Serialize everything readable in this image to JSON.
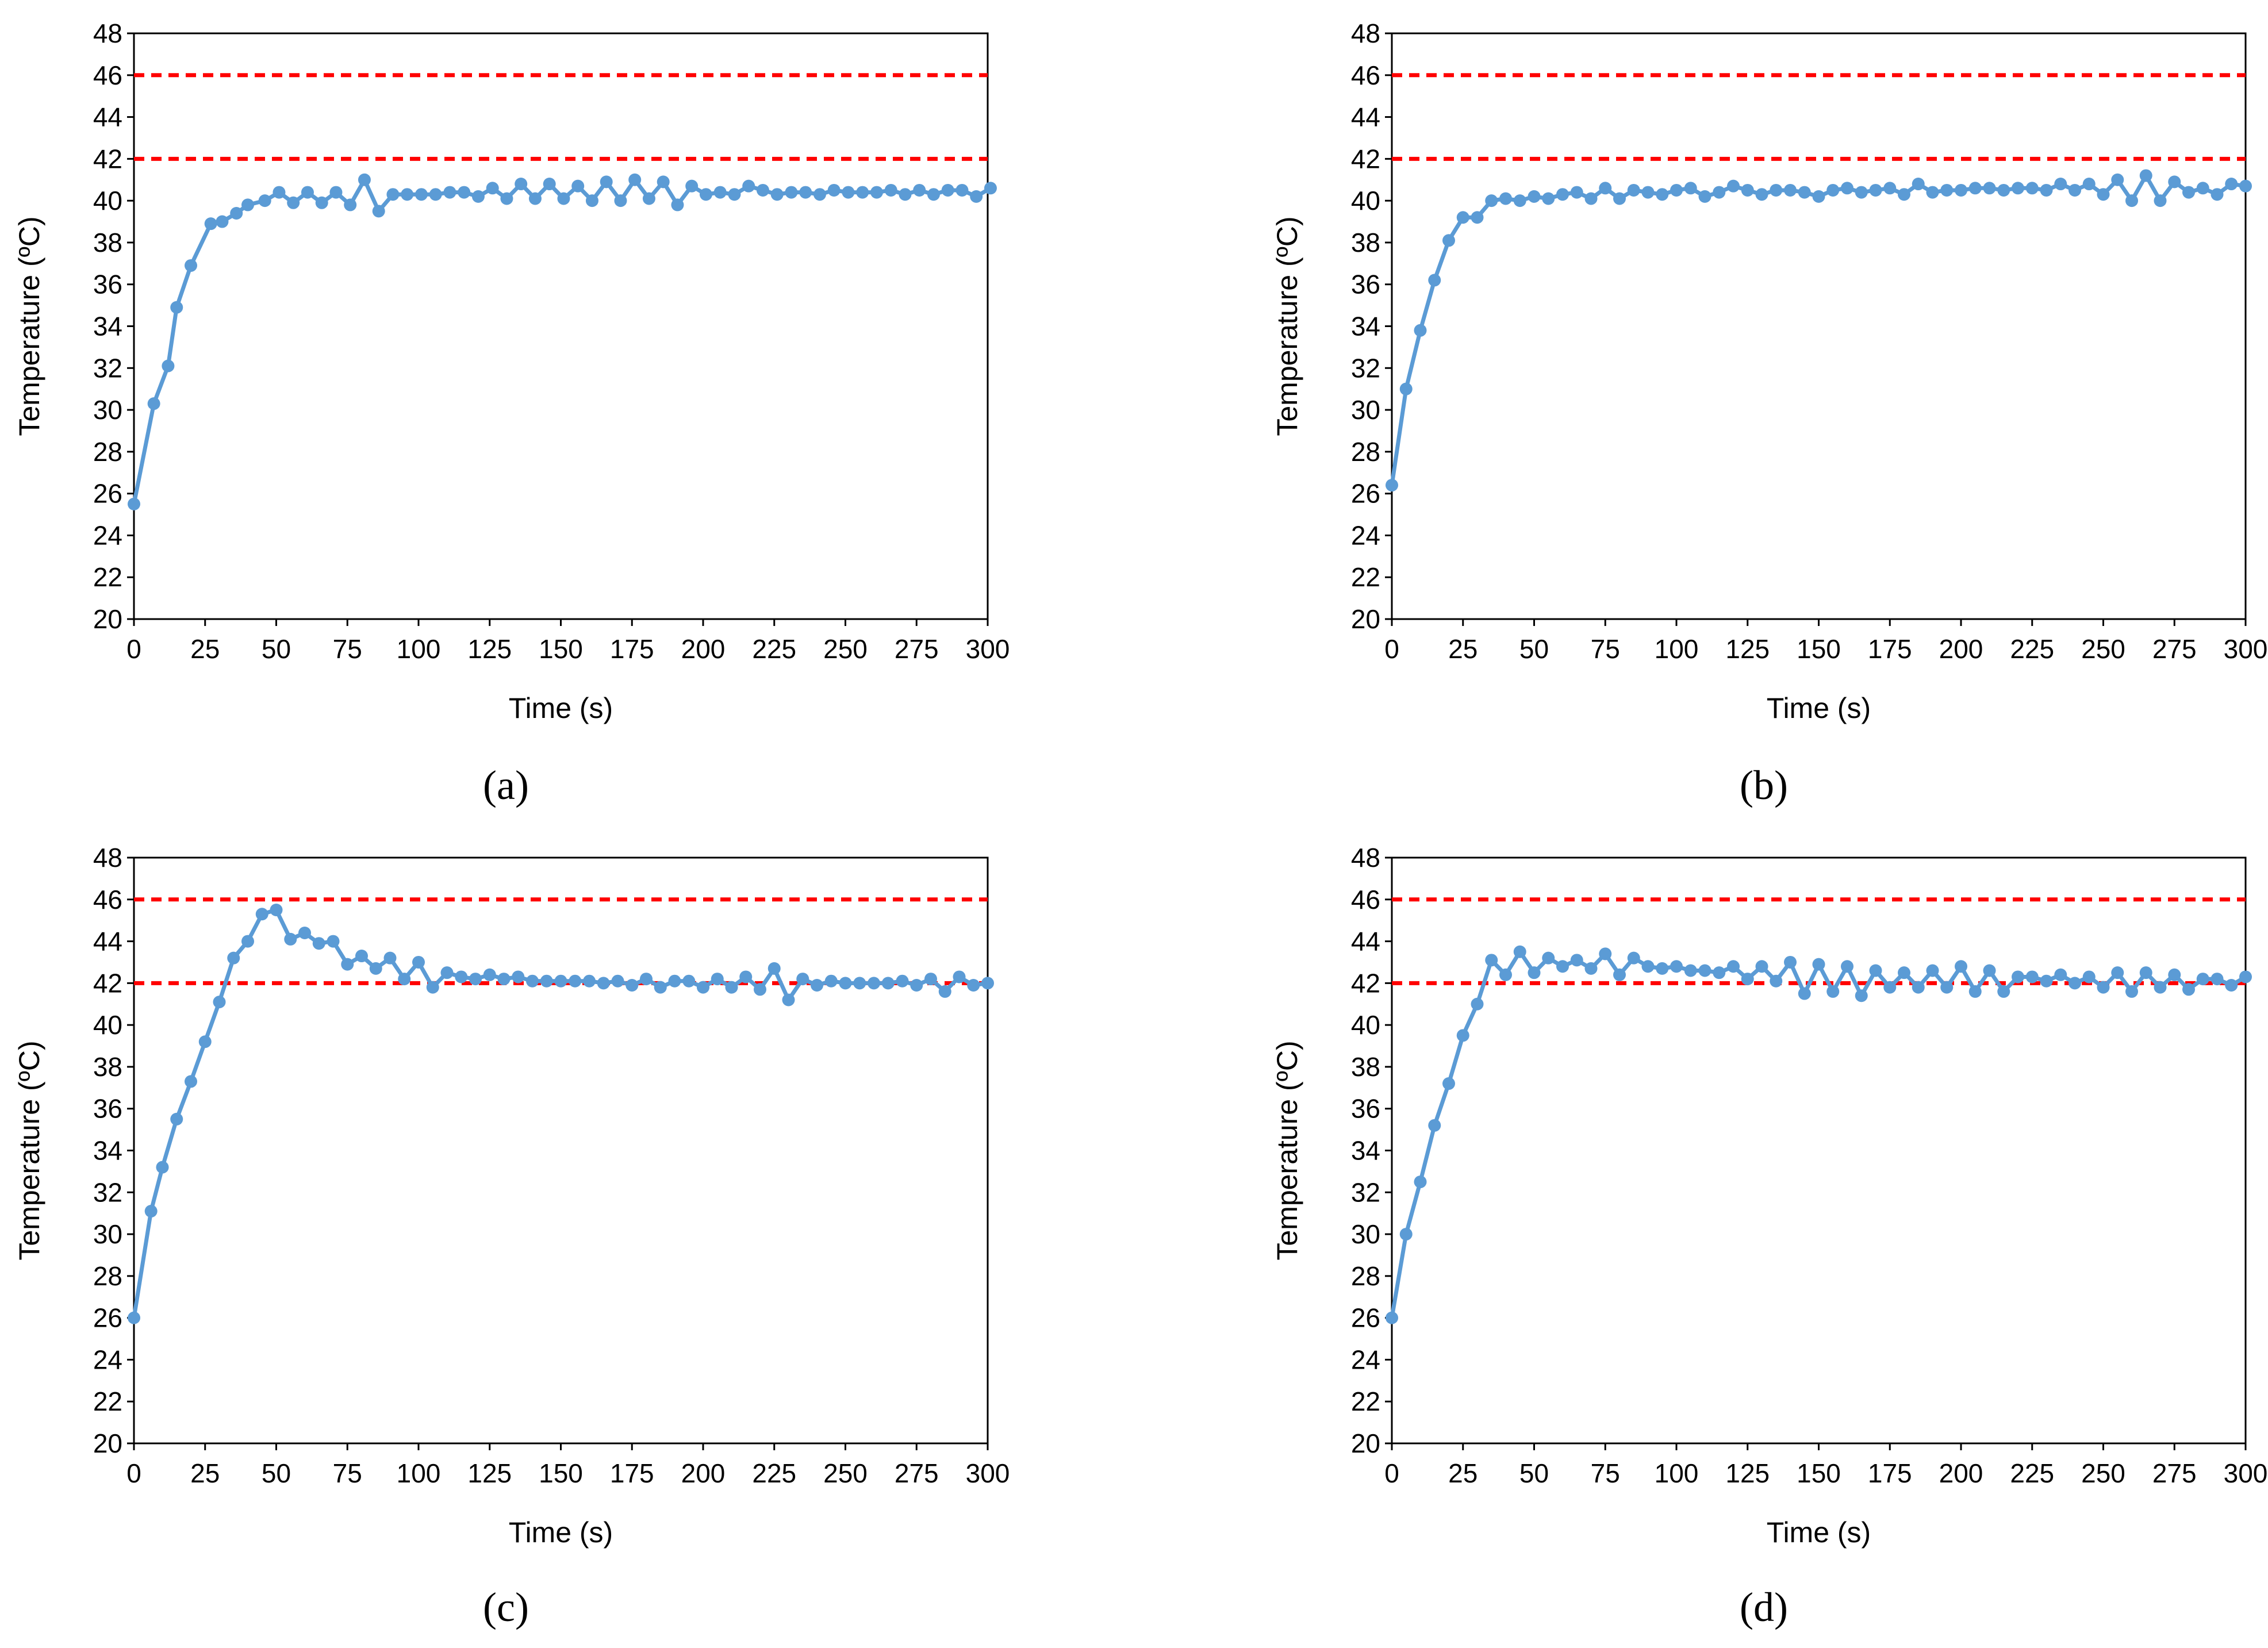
{
  "chart_data": [
    {
      "type": "line",
      "panel": "a",
      "panel_label": "(a)",
      "title": "",
      "xlabel": "Time (s)",
      "ylabel": "Temperature (ºC)",
      "xlim": [
        0,
        300
      ],
      "ylim": [
        20,
        48
      ],
      "xticks": [
        0,
        25,
        50,
        75,
        100,
        125,
        150,
        175,
        200,
        225,
        250,
        275,
        300
      ],
      "yticks": [
        20,
        22,
        24,
        26,
        28,
        30,
        32,
        34,
        36,
        38,
        40,
        42,
        44,
        46,
        48
      ],
      "grid": false,
      "line_color": "#5B9BD5",
      "reference_color": "#FF0000",
      "reference_lines": [
        42,
        46
      ],
      "series": [
        {
          "name": "Temperature",
          "x": [
            0,
            7,
            12,
            15,
            20,
            27,
            31,
            36,
            40,
            46,
            51,
            56,
            61,
            66,
            71,
            76,
            81,
            86,
            91,
            96,
            101,
            106,
            111,
            116,
            121,
            126,
            131,
            136,
            141,
            146,
            151,
            156,
            161,
            166,
            171,
            176,
            181,
            186,
            191,
            196,
            201,
            206,
            211,
            216,
            221,
            226,
            231,
            236,
            241,
            246,
            251,
            256,
            261,
            266,
            271,
            276,
            281,
            286,
            291,
            296,
            301
          ],
          "y": [
            25.5,
            30.3,
            32.1,
            34.9,
            36.9,
            38.9,
            39.0,
            39.4,
            39.8,
            40.0,
            40.4,
            39.9,
            40.4,
            39.9,
            40.4,
            39.8,
            41.0,
            39.5,
            40.3,
            40.3,
            40.3,
            40.3,
            40.4,
            40.4,
            40.2,
            40.6,
            40.1,
            40.8,
            40.1,
            40.8,
            40.1,
            40.7,
            40.0,
            40.9,
            40.0,
            41.0,
            40.1,
            40.9,
            39.8,
            40.7,
            40.3,
            40.4,
            40.3,
            40.7,
            40.5,
            40.3,
            40.4,
            40.4,
            40.3,
            40.5,
            40.4,
            40.4,
            40.4,
            40.5,
            40.3,
            40.5,
            40.3,
            40.5,
            40.5,
            40.2,
            40.6
          ]
        }
      ]
    },
    {
      "type": "line",
      "panel": "b",
      "panel_label": "(b)",
      "title": "",
      "xlabel": "Time (s)",
      "ylabel": "Temperature (ºC)",
      "xlim": [
        0,
        300
      ],
      "ylim": [
        20,
        48
      ],
      "xticks": [
        0,
        25,
        50,
        75,
        100,
        125,
        150,
        175,
        200,
        225,
        250,
        275,
        300
      ],
      "yticks": [
        20,
        22,
        24,
        26,
        28,
        30,
        32,
        34,
        36,
        38,
        40,
        42,
        44,
        46,
        48
      ],
      "grid": false,
      "line_color": "#5B9BD5",
      "reference_color": "#FF0000",
      "reference_lines": [
        42,
        46
      ],
      "series": [
        {
          "name": "Temperature",
          "x": [
            0,
            5,
            10,
            15,
            20,
            25,
            30,
            35,
            40,
            45,
            50,
            55,
            60,
            65,
            70,
            75,
            80,
            85,
            90,
            95,
            100,
            105,
            110,
            115,
            120,
            125,
            130,
            135,
            140,
            145,
            150,
            155,
            160,
            165,
            170,
            175,
            180,
            185,
            190,
            195,
            200,
            205,
            210,
            215,
            220,
            225,
            230,
            235,
            240,
            245,
            250,
            255,
            260,
            265,
            270,
            275,
            280,
            285,
            290,
            295,
            300
          ],
          "y": [
            26.4,
            31.0,
            33.8,
            36.2,
            38.1,
            39.2,
            39.2,
            40.0,
            40.1,
            40.0,
            40.2,
            40.1,
            40.3,
            40.4,
            40.1,
            40.6,
            40.1,
            40.5,
            40.4,
            40.3,
            40.5,
            40.6,
            40.2,
            40.4,
            40.7,
            40.5,
            40.3,
            40.5,
            40.5,
            40.4,
            40.2,
            40.5,
            40.6,
            40.4,
            40.5,
            40.6,
            40.3,
            40.8,
            40.4,
            40.5,
            40.5,
            40.6,
            40.6,
            40.5,
            40.6,
            40.6,
            40.5,
            40.8,
            40.5,
            40.8,
            40.3,
            41.0,
            40.0,
            41.2,
            40.0,
            40.9,
            40.4,
            40.6,
            40.3,
            40.8,
            40.7
          ]
        }
      ]
    },
    {
      "type": "line",
      "panel": "c",
      "panel_label": "(c)",
      "title": "",
      "xlabel": "Time (s)",
      "ylabel": "Temperature (ºC)",
      "xlim": [
        0,
        300
      ],
      "ylim": [
        20,
        48
      ],
      "xticks": [
        0,
        25,
        50,
        75,
        100,
        125,
        150,
        175,
        200,
        225,
        250,
        275,
        300
      ],
      "yticks": [
        20,
        22,
        24,
        26,
        28,
        30,
        32,
        34,
        36,
        38,
        40,
        42,
        44,
        46,
        48
      ],
      "grid": false,
      "line_color": "#5B9BD5",
      "reference_color": "#FF0000",
      "reference_lines": [
        42,
        46
      ],
      "series": [
        {
          "name": "Temperature",
          "x": [
            0,
            6,
            10,
            15,
            20,
            25,
            30,
            35,
            40,
            45,
            50,
            55,
            60,
            65,
            70,
            75,
            80,
            85,
            90,
            95,
            100,
            105,
            110,
            115,
            120,
            125,
            130,
            135,
            140,
            145,
            150,
            155,
            160,
            165,
            170,
            175,
            180,
            185,
            190,
            195,
            200,
            205,
            210,
            215,
            220,
            225,
            230,
            235,
            240,
            245,
            250,
            255,
            260,
            265,
            270,
            275,
            280,
            285,
            290,
            295,
            300
          ],
          "y": [
            26.0,
            31.1,
            33.2,
            35.5,
            37.3,
            39.2,
            41.1,
            43.2,
            44.0,
            45.3,
            45.5,
            44.1,
            44.4,
            43.9,
            44.0,
            42.9,
            43.3,
            42.7,
            43.2,
            42.2,
            43.0,
            41.8,
            42.5,
            42.3,
            42.2,
            42.4,
            42.2,
            42.3,
            42.1,
            42.1,
            42.1,
            42.1,
            42.1,
            42.0,
            42.1,
            41.9,
            42.2,
            41.8,
            42.1,
            42.1,
            41.8,
            42.2,
            41.8,
            42.3,
            41.7,
            42.7,
            41.2,
            42.2,
            41.9,
            42.1,
            42.0,
            42.0,
            42.0,
            42.0,
            42.1,
            41.9,
            42.2,
            41.6,
            42.3,
            41.9,
            42.0
          ]
        }
      ]
    },
    {
      "type": "line",
      "panel": "d",
      "panel_label": "(d)",
      "title": "",
      "xlabel": "Time (s)",
      "ylabel": "Temperature (ºC)",
      "xlim": [
        0,
        300
      ],
      "ylim": [
        20,
        48
      ],
      "xticks": [
        0,
        25,
        50,
        75,
        100,
        125,
        150,
        175,
        200,
        225,
        250,
        275,
        300
      ],
      "yticks": [
        20,
        22,
        24,
        26,
        28,
        30,
        32,
        34,
        36,
        38,
        40,
        42,
        44,
        46,
        48
      ],
      "grid": false,
      "line_color": "#5B9BD5",
      "reference_color": "#FF0000",
      "reference_lines": [
        42,
        46
      ],
      "series": [
        {
          "name": "Temperature",
          "x": [
            0,
            5,
            10,
            15,
            20,
            25,
            30,
            35,
            40,
            45,
            50,
            55,
            60,
            65,
            70,
            75,
            80,
            85,
            90,
            95,
            100,
            105,
            110,
            115,
            120,
            125,
            130,
            135,
            140,
            145,
            150,
            155,
            160,
            165,
            170,
            175,
            180,
            185,
            190,
            195,
            200,
            205,
            210,
            215,
            220,
            225,
            230,
            235,
            240,
            245,
            250,
            255,
            260,
            265,
            270,
            275,
            280,
            285,
            290,
            295,
            300
          ],
          "y": [
            26.0,
            30.0,
            32.5,
            35.2,
            37.2,
            39.5,
            41.0,
            43.1,
            42.4,
            43.5,
            42.5,
            43.2,
            42.8,
            43.1,
            42.7,
            43.4,
            42.4,
            43.2,
            42.8,
            42.7,
            42.8,
            42.6,
            42.6,
            42.5,
            42.8,
            42.2,
            42.8,
            42.1,
            43.0,
            41.5,
            42.9,
            41.6,
            42.8,
            41.4,
            42.6,
            41.8,
            42.5,
            41.8,
            42.6,
            41.8,
            42.8,
            41.6,
            42.6,
            41.6,
            42.3,
            42.3,
            42.1,
            42.4,
            42.0,
            42.3,
            41.8,
            42.5,
            41.6,
            42.5,
            41.8,
            42.4,
            41.7,
            42.2,
            42.2,
            41.9,
            42.3
          ]
        }
      ]
    }
  ]
}
